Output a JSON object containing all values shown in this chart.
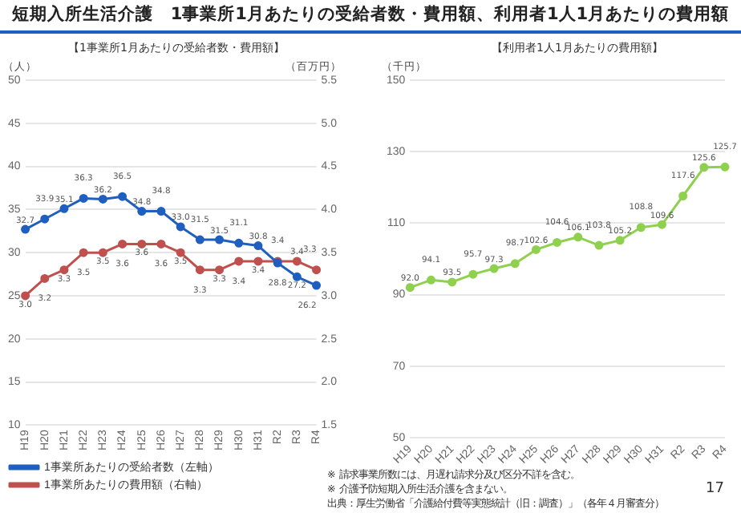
{
  "chart_data": [
    {
      "type": "line",
      "title": "短期入所生活介護　1事業所1月あたりの受給者数・費用額、利用者1人1月あたりの費用額",
      "subtitle": "【1事業所1月あたりの受給者数・費用額】",
      "ylabel": "（人）",
      "y2label": "（百万円）",
      "categories": [
        "H19",
        "H20",
        "H21",
        "H22",
        "H23",
        "H24",
        "H25",
        "H26",
        "H27",
        "H28",
        "H29",
        "H30",
        "H31",
        "R2",
        "R3",
        "R4"
      ],
      "series": [
        {
          "name": "1事業所あたりの受給者数（左軸）",
          "color": "#1f5fbf",
          "values": [
            32.7,
            33.9,
            35.1,
            36.3,
            36.2,
            36.5,
            34.8,
            34.8,
            33.0,
            31.5,
            31.5,
            31.1,
            30.8,
            28.8,
            27.2,
            26.2
          ],
          "value_labels": [
            "32.7",
            "33.9",
            "35.1",
            "36.3",
            "36.2",
            "36.5",
            "34.8",
            "34.8",
            "33.0",
            "31.5",
            "31.5",
            "31.1",
            "30.8",
            "28.8",
            "27.2",
            "26.2"
          ]
        },
        {
          "name": "1事業所あたりの費用額（右軸）",
          "color": "#c0504d",
          "axis": "y2",
          "values": [
            3.0,
            3.2,
            3.3,
            3.5,
            3.5,
            3.6,
            3.6,
            3.6,
            3.5,
            3.3,
            3.3,
            3.4,
            3.4,
            3.4,
            3.4,
            3.3
          ],
          "value_labels": [
            "3.0",
            "3.2",
            "3.3",
            "3.5",
            "3.5",
            "3.6",
            "3.6",
            "3.6",
            "3.5",
            "3.3",
            "3.3",
            "3.4",
            "3.4",
            "3.4",
            "3.4",
            "3.3"
          ]
        }
      ],
      "ylim": [
        10,
        50
      ],
      "yticks": [
        10,
        15,
        20,
        25,
        30,
        35,
        40,
        45,
        50
      ],
      "y2lim": [
        1.5,
        5.5
      ],
      "y2ticks": [
        1.5,
        {
          "value": 2,
          "label": "2.0"
        },
        2.5,
        {
          "value": 3,
          "label": "3.0"
        },
        3.5,
        {
          "value": 4,
          "label": "4.0"
        },
        4.5,
        {
          "value": 5,
          "label": "5.0"
        },
        5.5
      ],
      "grid": "y",
      "legend": "bottom",
      "marker": "circle"
    },
    {
      "type": "line",
      "title": "【利用者1人1月あたりの費用額】",
      "ylabel": "（千円）",
      "categories": [
        "H19",
        "H20",
        "H21",
        "H22",
        "H23",
        "H24",
        "H25",
        "H26",
        "H27",
        "H28",
        "H29",
        "H30",
        "H31",
        "R2",
        "R3",
        "R4"
      ],
      "series": [
        {
          "color": "#8fd14f",
          "values": [
            92.0,
            94.1,
            93.5,
            95.7,
            97.3,
            98.7,
            102.6,
            104.6,
            106.1,
            103.8,
            105.2,
            108.8,
            109.6,
            117.6,
            125.6,
            125.7
          ],
          "value_labels": [
            "92.0",
            "94.1",
            "93.5",
            "95.7",
            "97.3",
            "98.7",
            "102.6",
            "104.6",
            "106.1",
            "103.8",
            "105.2",
            "108.8",
            "109.6",
            "117.6",
            "125.6",
            "125.7"
          ]
        }
      ],
      "ylim": [
        50,
        150
      ],
      "yticks": [
        50,
        70,
        90,
        110,
        130,
        150
      ],
      "grid": "y",
      "marker": "circle",
      "annotations": [
        "※ 請求事業所数には、月遅れ請求分及び区分不詳を含む。",
        "※ 介護予防短期入所生活介護を含まない。",
        "出典：厚生労働省「介護給付費等実態統計（旧：調査）」（各年４月審査分）",
        "17"
      ]
    }
  ]
}
